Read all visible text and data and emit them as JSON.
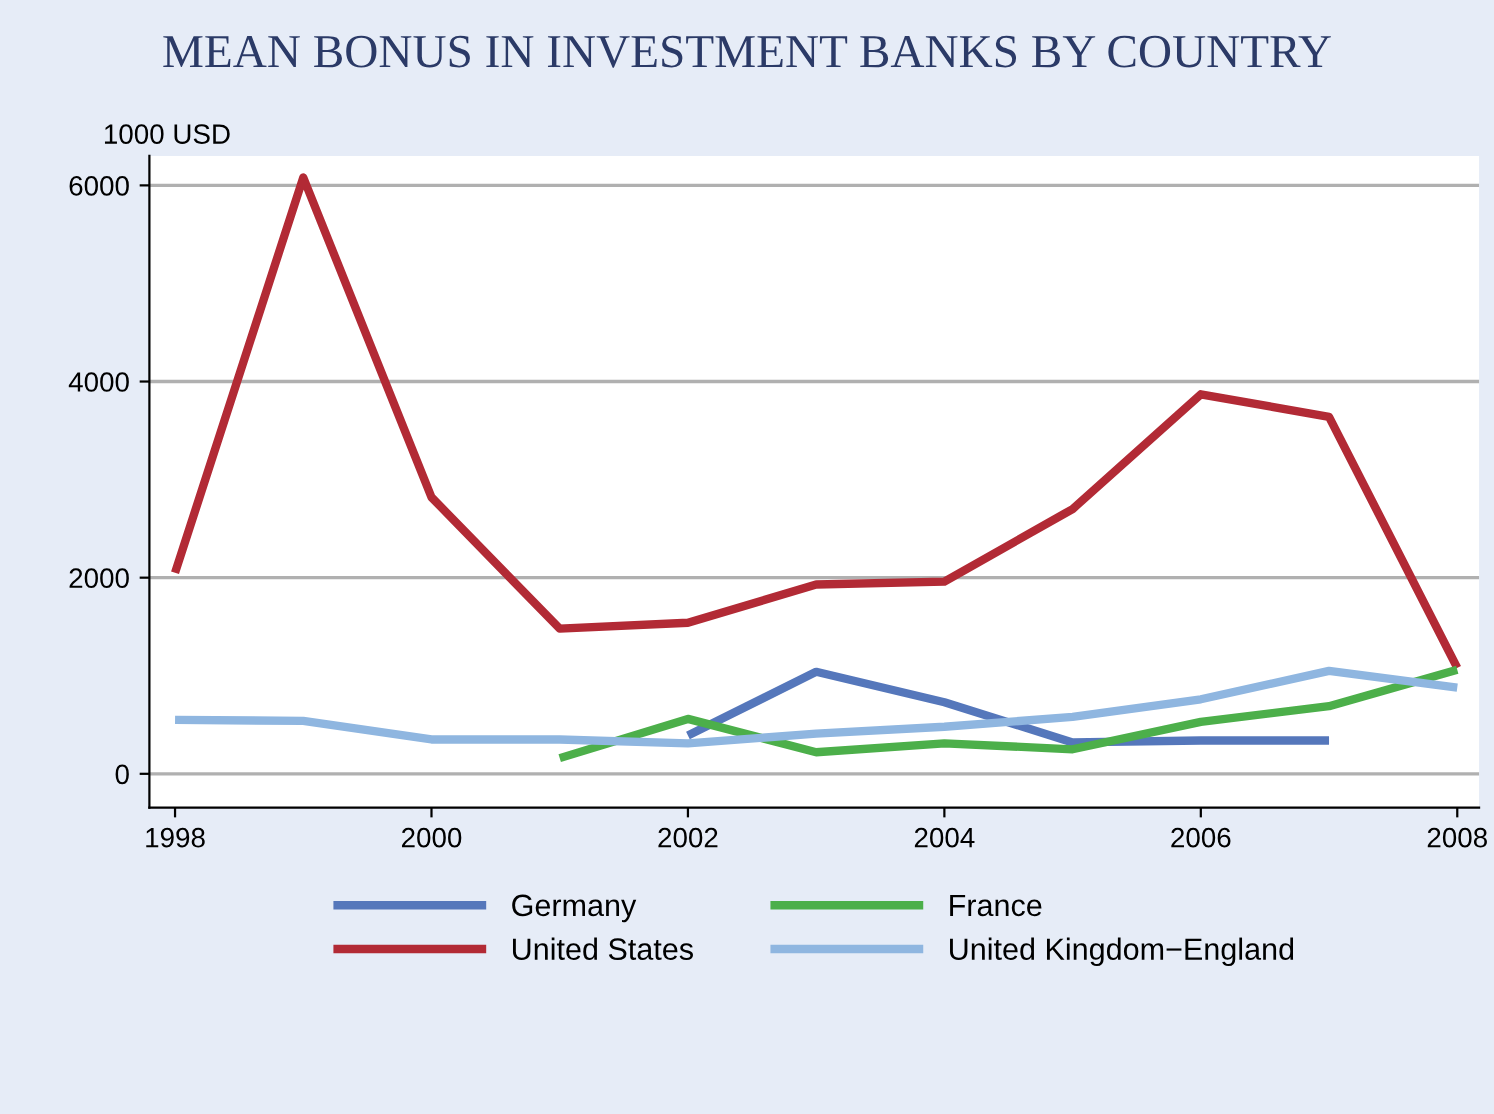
{
  "chart_data": {
    "type": "line",
    "title": "MEAN BONUS IN INVESTMENT BANKS BY COUNTRY",
    "ylabel": "1000 USD",
    "x": [
      1998,
      1999,
      2000,
      2001,
      2002,
      2003,
      2004,
      2005,
      2006,
      2007,
      2008
    ],
    "series": [
      {
        "name": "Germany",
        "color": "#5577bb",
        "values": [
          null,
          null,
          null,
          null,
          390,
          1040,
          730,
          320,
          340,
          340,
          null
        ]
      },
      {
        "name": "United States",
        "color": "#b22a35",
        "values": [
          2050,
          6080,
          2820,
          1480,
          1540,
          1930,
          1960,
          2700,
          3870,
          3640,
          1080
        ]
      },
      {
        "name": "France",
        "color": "#4caf4a",
        "values": [
          null,
          null,
          null,
          160,
          560,
          220,
          310,
          250,
          530,
          690,
          1060
        ]
      },
      {
        "name": "United Kingdom−England",
        "color": "#8fb6e0",
        "values": [
          550,
          540,
          350,
          350,
          310,
          410,
          480,
          580,
          760,
          1050,
          880
        ]
      }
    ],
    "xlim": [
      1997.8,
      2008.17
    ],
    "ylim": [
      -345,
      6300
    ],
    "xticks": [
      1998,
      2000,
      2002,
      2004,
      2006,
      2008
    ],
    "yticks": [
      0,
      2000,
      4000,
      6000
    ],
    "grid": "y",
    "legend": "bottom",
    "marker": "none",
    "line_style": "solid"
  }
}
